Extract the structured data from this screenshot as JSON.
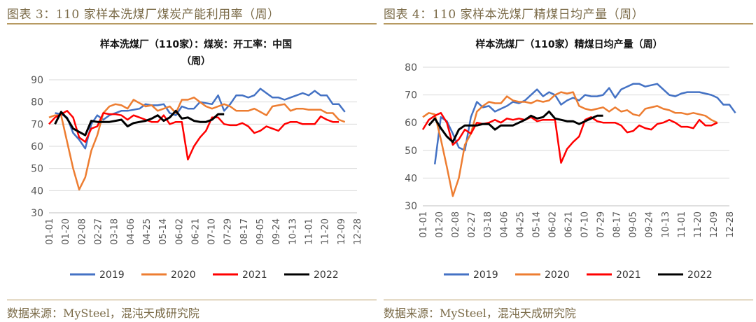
{
  "panels": [
    {
      "caption": "图表 3：110 家样本洗煤厂煤炭产能利用率（周）",
      "source": "数据来源：MySteel，混沌天成研究院",
      "chart_data": {
        "type": "line",
        "title_lines": [
          "样本洗煤厂（110家）：煤炭：开工率：中国",
          "（周）"
        ],
        "x_ticks": [
          "01-01",
          "01-20",
          "02-08",
          "02-27",
          "03-18",
          "04-06",
          "04-25",
          "05-14",
          "06-02",
          "06-21",
          "07-10",
          "07-29",
          "08-17",
          "09-05",
          "09-24",
          "10-13",
          "11-01",
          "11-20",
          "12-09",
          "12-28"
        ],
        "ylim": [
          30,
          90
        ],
        "y_ticks": [
          30,
          40,
          50,
          60,
          70,
          80,
          90
        ],
        "grid": true,
        "legend_position": "bottom",
        "series": [
          {
            "name": "2019",
            "color": "#4472c4",
            "x_start": 1,
            "values": [
              75,
              74.5,
              73,
              66,
              63,
              59,
              70,
              74,
              72,
              74,
              75,
              76,
              76,
              76.5,
              77,
              79,
              78.5,
              78.5,
              79,
              75,
              74,
              78,
              77,
              77,
              80,
              79.5,
              79,
              83,
              76,
              79,
              83,
              83,
              82,
              83,
              86,
              84,
              82,
              82,
              81,
              82,
              83,
              84,
              83,
              85,
              83,
              83,
              79,
              79,
              75.5
            ]
          },
          {
            "name": "2020",
            "color": "#ed7d31",
            "x_start": 0,
            "values": [
              73,
              74,
              74,
              62,
              50,
              40.5,
              46,
              58,
              65,
              75,
              78,
              79,
              78.5,
              77,
              81,
              79.5,
              78,
              78.5,
              76,
              77,
              78,
              75,
              81,
              81,
              82,
              80,
              78,
              77,
              78,
              79,
              78,
              76,
              76,
              76,
              77,
              75.5,
              74,
              78,
              78.5,
              79,
              76,
              77,
              77,
              76.5,
              76.5,
              76.5,
              75,
              75,
              72,
              71
            ]
          },
          {
            "name": "2021",
            "color": "#ff0000",
            "x_start": 0,
            "values": [
              70,
              73,
              74.5,
              76,
              73,
              64,
              62,
              68,
              69,
              75,
              74.5,
              74.5,
              74,
              72,
              74,
              73,
              72,
              71,
              71,
              74,
              70,
              71,
              71,
              54,
              60,
              64,
              67,
              73,
              73,
              70,
              69.5,
              69.5,
              70.5,
              69,
              66,
              67,
              69,
              68,
              67,
              70,
              71,
              71,
              70,
              70,
              70,
              73.5,
              72,
              71,
              71
            ]
          },
          {
            "name": "2022",
            "color": "#000000",
            "x_start": 1,
            "values": [
              70,
              75.5,
              72.5,
              68,
              66.5,
              65,
              71.5,
              71,
              71,
              71,
              71.5,
              72,
              69,
              70.5,
              71,
              71.5,
              72.5,
              74,
              71.5,
              73,
              76,
              72.5,
              73,
              71.5,
              71,
              71,
              72,
              74.5,
              74.5
            ]
          }
        ]
      }
    },
    {
      "caption": "图表 4：110 家样本洗煤厂精煤日均产量（周）",
      "source": "数据来源：MySteel，混沌天成研究院",
      "chart_data": {
        "type": "line",
        "title_lines": [
          "样本洗煤厂（110家）精煤日均产量（周）"
        ],
        "x_ticks": [
          "01-01",
          "01-20",
          "02-08",
          "02-27",
          "03-18",
          "04-06",
          "04-25",
          "05-14",
          "06-02",
          "06-21",
          "07-10",
          "07-29",
          "08-17",
          "09-05",
          "09-24",
          "10-13",
          "11-01",
          "11-20",
          "12-09",
          "12-28"
        ],
        "ylim": [
          30,
          80
        ],
        "y_ticks": [
          30,
          40,
          50,
          60,
          70,
          80
        ],
        "grid": true,
        "legend_position": "bottom",
        "series": [
          {
            "name": "2019",
            "color": "#4472c4",
            "x_start": 2,
            "values": [
              45,
              62,
              60.5,
              56,
              51,
              50,
              62,
              67.5,
              65.5,
              66,
              64,
              65,
              66,
              67.5,
              67,
              68,
              70,
              72,
              69.5,
              71,
              70,
              66.5,
              68,
              69,
              68,
              70,
              69.5,
              69.5,
              70,
              72.5,
              69,
              72,
              73,
              74,
              74,
              73,
              73.5,
              74,
              72,
              70,
              69.5,
              70.5,
              71,
              71,
              71,
              70.5,
              70,
              69,
              66.5,
              66.5,
              63.5
            ]
          },
          {
            "name": "2020",
            "color": "#ed7d31",
            "x_start": 0,
            "values": [
              62,
              63.5,
              63,
              54,
              44,
              33.5,
              40,
              52,
              56,
              64,
              66,
              67.5,
              67,
              67,
              69.5,
              68,
              67.5,
              67.5,
              67,
              68,
              67.5,
              68,
              70,
              71,
              70.5,
              71,
              66,
              65,
              64.5,
              65,
              65.5,
              64,
              65.5,
              64,
              64.5,
              63,
              62.5,
              65,
              65.5,
              66,
              65,
              64.5,
              63.5,
              63.5,
              63,
              63.5,
              63,
              62.5,
              61,
              60
            ]
          },
          {
            "name": "2021",
            "color": "#ff0000",
            "x_start": 0,
            "values": [
              57.5,
              61,
              62.5,
              63.5,
              60,
              52,
              54,
              57.5,
              56,
              60,
              59.5,
              60,
              61,
              60,
              61.5,
              61,
              61.5,
              61,
              62,
              60.5,
              61,
              61,
              61,
              45.5,
              50.5,
              53,
              55,
              61,
              62,
              60.5,
              60,
              60,
              60,
              59,
              56.5,
              57,
              59,
              58,
              57.5,
              59.5,
              60,
              61,
              60,
              58.5,
              58.5,
              58,
              61,
              59,
              59,
              60
            ]
          },
          {
            "name": "2022",
            "color": "#000000",
            "x_start": 1,
            "values": [
              59,
              61.5,
              58,
              55,
              53,
              57.5,
              59,
              59,
              59,
              59.5,
              59.5,
              57.5,
              59,
              59,
              59,
              60,
              61,
              62.5,
              61.5,
              62,
              64,
              61.5,
              61,
              60.5,
              60.5,
              59.5,
              60.5,
              61.5,
              62.5,
              62.5
            ]
          }
        ]
      }
    }
  ]
}
